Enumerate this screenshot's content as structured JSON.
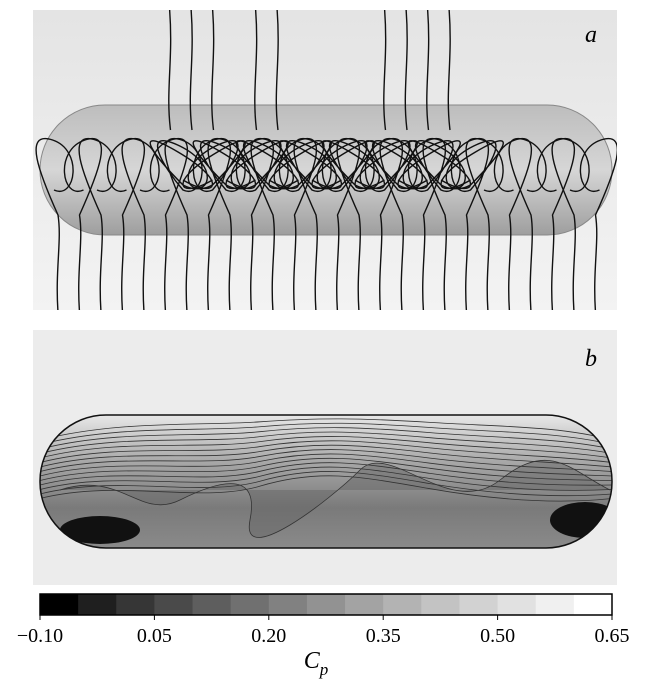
{
  "panels": [
    {
      "label": "a"
    },
    {
      "label": "b"
    }
  ],
  "colorbar": {
    "label": "C",
    "label_sub": "p",
    "lim": [
      -0.1,
      0.65
    ],
    "bands": 15,
    "ticks": [
      {
        "value": -0.1,
        "label": "−0.10"
      },
      0.05,
      {
        "value": 0.2,
        "label": "0.20"
      },
      0.35,
      {
        "value": 0.5,
        "label": "0.50"
      },
      0.65
    ]
  }
}
